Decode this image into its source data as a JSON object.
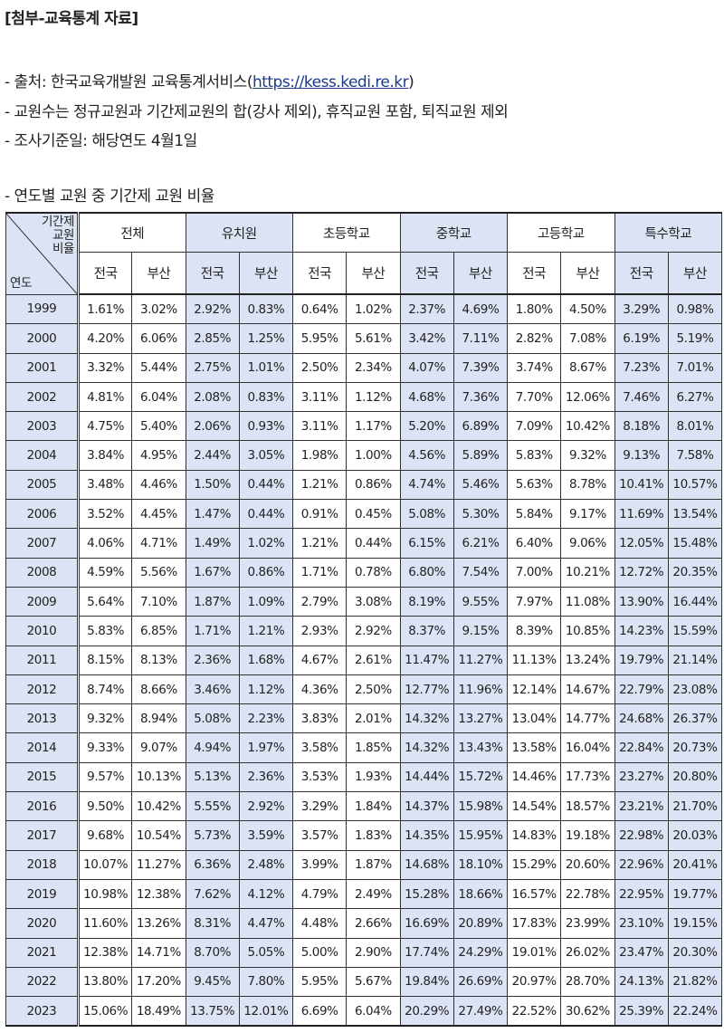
{
  "document": {
    "title": "[첨부-교육통계 자료]",
    "notes": {
      "source_prefix": "- 출처: 한국교육개발원 교육통계서비스(",
      "source_link": "https://kess.kedi.re.kr",
      "source_suffix": ")",
      "teacher_count": "- 교원수는 정규교원과 기간제교원의 합(강사 제외), 휴직교원 포함, 퇴직교원 제외",
      "survey_date": "- 조사기준일: 해당연도 4월1일",
      "table_caption": "- 연도별 교원 중 기간제 교원 비율"
    }
  },
  "table": {
    "corner": {
      "top_line1": "기간제",
      "top_line2": "교원",
      "top_line3": "비율",
      "bottom": "연도"
    },
    "groups": [
      "전체",
      "유치원",
      "초등학교",
      "중학교",
      "고등학교",
      "특수학교"
    ],
    "subheaders": [
      "전국",
      "부산"
    ],
    "rows": [
      {
        "year": "1999",
        "v": [
          "1.61%",
          "3.02%",
          "2.92%",
          "0.83%",
          "0.64%",
          "1.02%",
          "2.37%",
          "4.69%",
          "1.80%",
          "4.50%",
          "3.29%",
          "0.98%"
        ]
      },
      {
        "year": "2000",
        "v": [
          "4.20%",
          "6.06%",
          "2.85%",
          "1.25%",
          "5.95%",
          "5.61%",
          "3.42%",
          "7.11%",
          "2.82%",
          "7.08%",
          "6.19%",
          "5.19%"
        ]
      },
      {
        "year": "2001",
        "v": [
          "3.32%",
          "5.44%",
          "2.75%",
          "1.01%",
          "2.50%",
          "2.34%",
          "4.07%",
          "7.39%",
          "3.74%",
          "8.67%",
          "7.23%",
          "7.01%"
        ]
      },
      {
        "year": "2002",
        "v": [
          "4.81%",
          "6.04%",
          "2.08%",
          "0.83%",
          "3.11%",
          "1.12%",
          "4.68%",
          "7.36%",
          "7.70%",
          "12.06%",
          "7.46%",
          "6.27%"
        ]
      },
      {
        "year": "2003",
        "v": [
          "4.75%",
          "5.40%",
          "2.06%",
          "0.93%",
          "3.11%",
          "1.17%",
          "5.20%",
          "6.89%",
          "7.09%",
          "10.42%",
          "8.18%",
          "8.01%"
        ]
      },
      {
        "year": "2004",
        "v": [
          "3.84%",
          "4.95%",
          "2.44%",
          "3.05%",
          "1.98%",
          "1.00%",
          "4.56%",
          "5.89%",
          "5.83%",
          "9.32%",
          "9.13%",
          "7.58%"
        ]
      },
      {
        "year": "2005",
        "v": [
          "3.48%",
          "4.46%",
          "1.50%",
          "0.44%",
          "1.21%",
          "0.86%",
          "4.74%",
          "5.46%",
          "5.63%",
          "8.78%",
          "10.41%",
          "10.57%"
        ]
      },
      {
        "year": "2006",
        "v": [
          "3.52%",
          "4.45%",
          "1.47%",
          "0.44%",
          "0.91%",
          "0.45%",
          "5.08%",
          "5.30%",
          "5.84%",
          "9.17%",
          "11.69%",
          "13.54%"
        ]
      },
      {
        "year": "2007",
        "v": [
          "4.06%",
          "4.71%",
          "1.49%",
          "1.02%",
          "1.21%",
          "0.44%",
          "6.15%",
          "6.21%",
          "6.40%",
          "9.06%",
          "12.05%",
          "15.48%"
        ]
      },
      {
        "year": "2008",
        "v": [
          "4.59%",
          "5.56%",
          "1.67%",
          "0.86%",
          "1.71%",
          "0.78%",
          "6.80%",
          "7.54%",
          "7.00%",
          "10.21%",
          "12.72%",
          "20.35%"
        ]
      },
      {
        "year": "2009",
        "v": [
          "5.64%",
          "7.10%",
          "1.87%",
          "1.09%",
          "2.79%",
          "3.08%",
          "8.19%",
          "9.55%",
          "7.97%",
          "11.08%",
          "13.90%",
          "16.44%"
        ]
      },
      {
        "year": "2010",
        "v": [
          "5.83%",
          "6.85%",
          "1.71%",
          "1.21%",
          "2.93%",
          "2.92%",
          "8.37%",
          "9.15%",
          "8.39%",
          "10.85%",
          "14.23%",
          "15.59%"
        ]
      },
      {
        "year": "2011",
        "v": [
          "8.15%",
          "8.13%",
          "2.36%",
          "1.68%",
          "4.67%",
          "2.61%",
          "11.47%",
          "11.27%",
          "11.13%",
          "13.24%",
          "19.79%",
          "21.14%"
        ]
      },
      {
        "year": "2012",
        "v": [
          "8.74%",
          "8.66%",
          "3.46%",
          "1.12%",
          "4.36%",
          "2.50%",
          "12.77%",
          "11.96%",
          "12.14%",
          "14.67%",
          "22.79%",
          "23.08%"
        ]
      },
      {
        "year": "2013",
        "v": [
          "9.32%",
          "8.94%",
          "5.08%",
          "2.23%",
          "3.83%",
          "2.01%",
          "14.32%",
          "13.27%",
          "13.04%",
          "14.77%",
          "24.68%",
          "26.37%"
        ]
      },
      {
        "year": "2014",
        "v": [
          "9.33%",
          "9.07%",
          "4.94%",
          "1.97%",
          "3.58%",
          "1.85%",
          "14.32%",
          "13.43%",
          "13.58%",
          "16.04%",
          "22.84%",
          "20.73%"
        ]
      },
      {
        "year": "2015",
        "v": [
          "9.57%",
          "10.13%",
          "5.13%",
          "2.36%",
          "3.53%",
          "1.93%",
          "14.44%",
          "15.72%",
          "14.46%",
          "17.73%",
          "23.27%",
          "20.80%"
        ]
      },
      {
        "year": "2016",
        "v": [
          "9.50%",
          "10.42%",
          "5.55%",
          "2.92%",
          "3.29%",
          "1.84%",
          "14.37%",
          "15.98%",
          "14.54%",
          "18.57%",
          "23.21%",
          "21.70%"
        ]
      },
      {
        "year": "2017",
        "v": [
          "9.68%",
          "10.54%",
          "5.73%",
          "3.59%",
          "3.57%",
          "1.83%",
          "14.35%",
          "15.95%",
          "14.83%",
          "19.18%",
          "22.98%",
          "20.03%"
        ]
      },
      {
        "year": "2018",
        "v": [
          "10.07%",
          "11.27%",
          "6.36%",
          "2.48%",
          "3.99%",
          "1.87%",
          "14.68%",
          "18.10%",
          "15.29%",
          "20.60%",
          "22.96%",
          "20.41%"
        ]
      },
      {
        "year": "2019",
        "v": [
          "10.98%",
          "12.38%",
          "7.62%",
          "4.12%",
          "4.79%",
          "2.49%",
          "15.28%",
          "18.66%",
          "16.57%",
          "22.78%",
          "22.95%",
          "19.77%"
        ]
      },
      {
        "year": "2020",
        "v": [
          "11.60%",
          "13.26%",
          "8.31%",
          "4.47%",
          "4.48%",
          "2.66%",
          "16.69%",
          "20.89%",
          "17.83%",
          "23.99%",
          "23.10%",
          "19.15%"
        ]
      },
      {
        "year": "2021",
        "v": [
          "12.38%",
          "14.71%",
          "8.70%",
          "5.05%",
          "5.00%",
          "2.90%",
          "17.74%",
          "24.29%",
          "19.01%",
          "26.02%",
          "23.47%",
          "20.30%"
        ]
      },
      {
        "year": "2022",
        "v": [
          "13.80%",
          "17.20%",
          "9.45%",
          "7.80%",
          "5.95%",
          "5.67%",
          "19.84%",
          "26.69%",
          "20.97%",
          "28.70%",
          "24.13%",
          "21.82%"
        ]
      },
      {
        "year": "2023",
        "v": [
          "15.06%",
          "18.49%",
          "13.75%",
          "12.01%",
          "6.69%",
          "6.04%",
          "20.29%",
          "27.49%",
          "22.52%",
          "30.62%",
          "25.39%",
          "22.24%"
        ]
      }
    ]
  },
  "colors": {
    "header_blue": "#dbe3f4",
    "white": "#ffffff",
    "link": "#1a3a8a"
  }
}
